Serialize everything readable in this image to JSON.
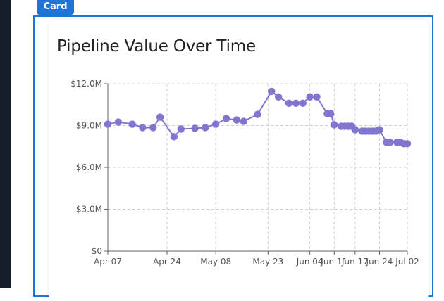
{
  "card": {
    "tab_label": "Card"
  },
  "chart_data": {
    "type": "line",
    "title": "Pipeline Value Over Time",
    "xlabel": "",
    "ylabel": "",
    "ylim": [
      0,
      12
    ],
    "y_ticks": [
      0,
      3,
      6,
      9,
      12
    ],
    "y_tick_labels": [
      "$0",
      "$3.0M",
      "$6.0M",
      "$9.0M",
      "$12.0M"
    ],
    "x_ticks": [
      "2024-04-07",
      "2024-04-24",
      "2024-05-08",
      "2024-05-23",
      "2024-06-04",
      "2024-06-11",
      "2024-06-17",
      "2024-06-24",
      "2024-07-02"
    ],
    "x_tick_labels": [
      "Apr 07",
      "Apr 24",
      "May 08",
      "May 23",
      "Jun 04",
      "Jun 11",
      "Jun 17",
      "Jun 24",
      "Jul 02"
    ],
    "grid": true,
    "line_color": "#8076d0",
    "series": [
      {
        "x": [
          "2024-04-07",
          "2024-04-10",
          "2024-04-14",
          "2024-04-17",
          "2024-04-20",
          "2024-04-22",
          "2024-04-26",
          "2024-04-28",
          "2024-05-02",
          "2024-05-05",
          "2024-05-08",
          "2024-05-11",
          "2024-05-14",
          "2024-05-16",
          "2024-05-20",
          "2024-05-24",
          "2024-05-26",
          "2024-05-29",
          "2024-05-31",
          "2024-06-02",
          "2024-06-04",
          "2024-06-06",
          "2024-06-09",
          "2024-06-10",
          "2024-06-11",
          "2024-06-13",
          "2024-06-14",
          "2024-06-15",
          "2024-06-16",
          "2024-06-17",
          "2024-06-19",
          "2024-06-20",
          "2024-06-21",
          "2024-06-22",
          "2024-06-23",
          "2024-06-24",
          "2024-06-26",
          "2024-06-27",
          "2024-06-29",
          "2024-06-30",
          "2024-07-01",
          "2024-07-02"
        ],
        "values": [
          9.1,
          9.25,
          9.1,
          8.85,
          8.85,
          9.6,
          8.2,
          8.75,
          8.8,
          8.85,
          9.1,
          9.5,
          9.4,
          9.3,
          9.8,
          11.45,
          11.05,
          10.6,
          10.6,
          10.6,
          11.05,
          11.05,
          9.85,
          9.85,
          9.05,
          8.95,
          8.95,
          8.95,
          8.95,
          8.7,
          8.6,
          8.6,
          8.6,
          8.6,
          8.6,
          8.7,
          7.8,
          7.8,
          7.8,
          7.8,
          7.7,
          7.7
        ]
      }
    ]
  }
}
